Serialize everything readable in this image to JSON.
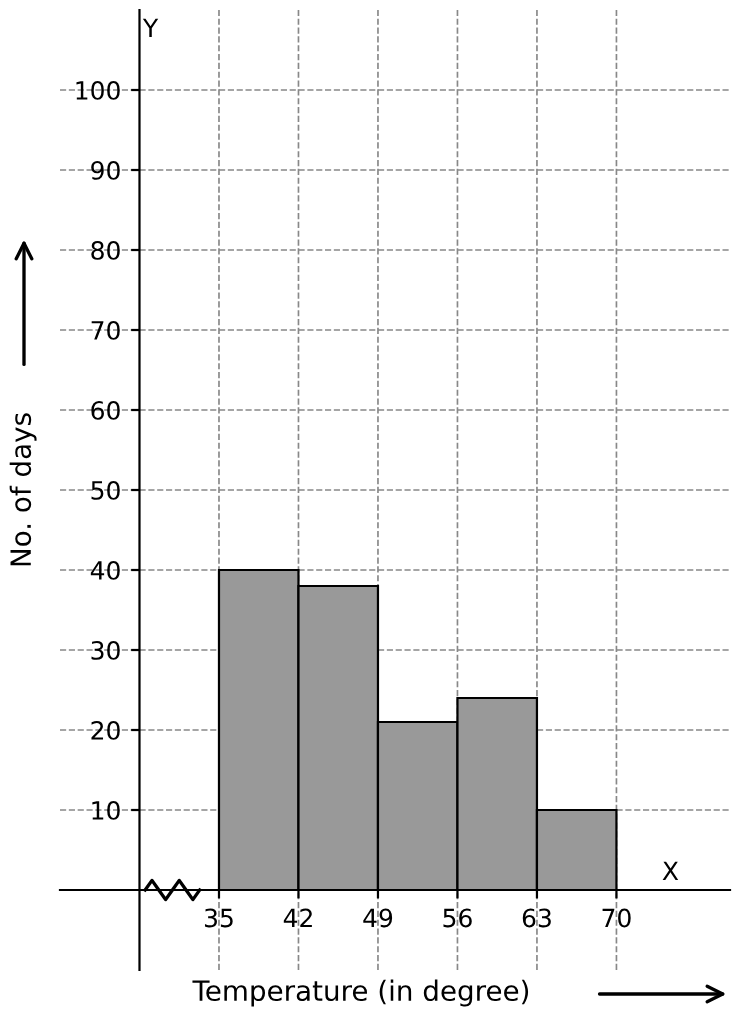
{
  "chart_data": {
    "type": "histogram",
    "xlabel": "Temperature (in degree)",
    "ylabel": "No. of days",
    "bins": [
      35,
      42,
      49,
      56,
      63,
      70
    ],
    "values": [
      40,
      38,
      21,
      24,
      10
    ],
    "color": "#999999",
    "xlim": [
      21,
      80
    ],
    "ylim": [
      -10,
      110
    ],
    "xticks": [
      35,
      42,
      49,
      56,
      63,
      70
    ],
    "yticks": [
      10,
      20,
      30,
      40,
      50,
      60,
      70,
      80,
      90,
      100
    ],
    "grid": true,
    "annotations": [
      "Y",
      "X"
    ]
  }
}
